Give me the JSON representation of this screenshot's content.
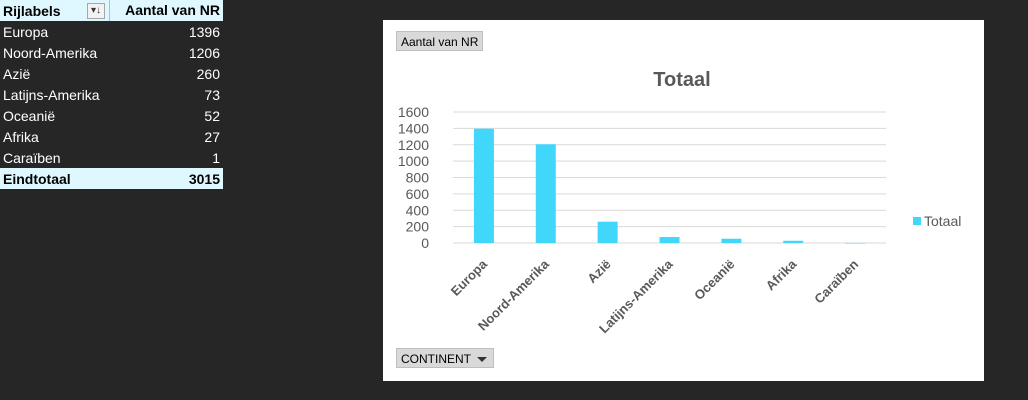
{
  "pivot": {
    "header": {
      "row_label": "Rijlabels",
      "value_label": "Aantal van NR",
      "filter_icon": "sort-filter-icon"
    },
    "rows": [
      {
        "label": "Europa",
        "value": "1396"
      },
      {
        "label": "Noord-Amerika",
        "value": "1206"
      },
      {
        "label": "Azië",
        "value": "260"
      },
      {
        "label": "Latijns-Amerika",
        "value": "73"
      },
      {
        "label": "Oceanië",
        "value": "52"
      },
      {
        "label": "Afrika",
        "value": "27"
      },
      {
        "label": "Caraïben",
        "value": "1"
      }
    ],
    "total": {
      "label": "Eindtotaal",
      "value": "3015"
    }
  },
  "chart": {
    "value_field_button": "Aantal van NR",
    "axis_field_button": "CONTINENT",
    "colors": {
      "bar": "#41d7fb",
      "grid": "#d9d9d9"
    }
  },
  "chart_data": {
    "type": "bar",
    "title": "Totaal",
    "categories": [
      "Europa",
      "Noord-Amerika",
      "Azië",
      "Latijns-Amerika",
      "Oceanië",
      "Afrika",
      "Caraïben"
    ],
    "series": [
      {
        "name": "Totaal",
        "values": [
          1396,
          1206,
          260,
          73,
          52,
          27,
          1
        ]
      }
    ],
    "yticks": [
      0,
      200,
      400,
      600,
      800,
      1000,
      1200,
      1400,
      1600
    ],
    "ylim": [
      0,
      1600
    ],
    "grid": true,
    "legend": "right"
  }
}
